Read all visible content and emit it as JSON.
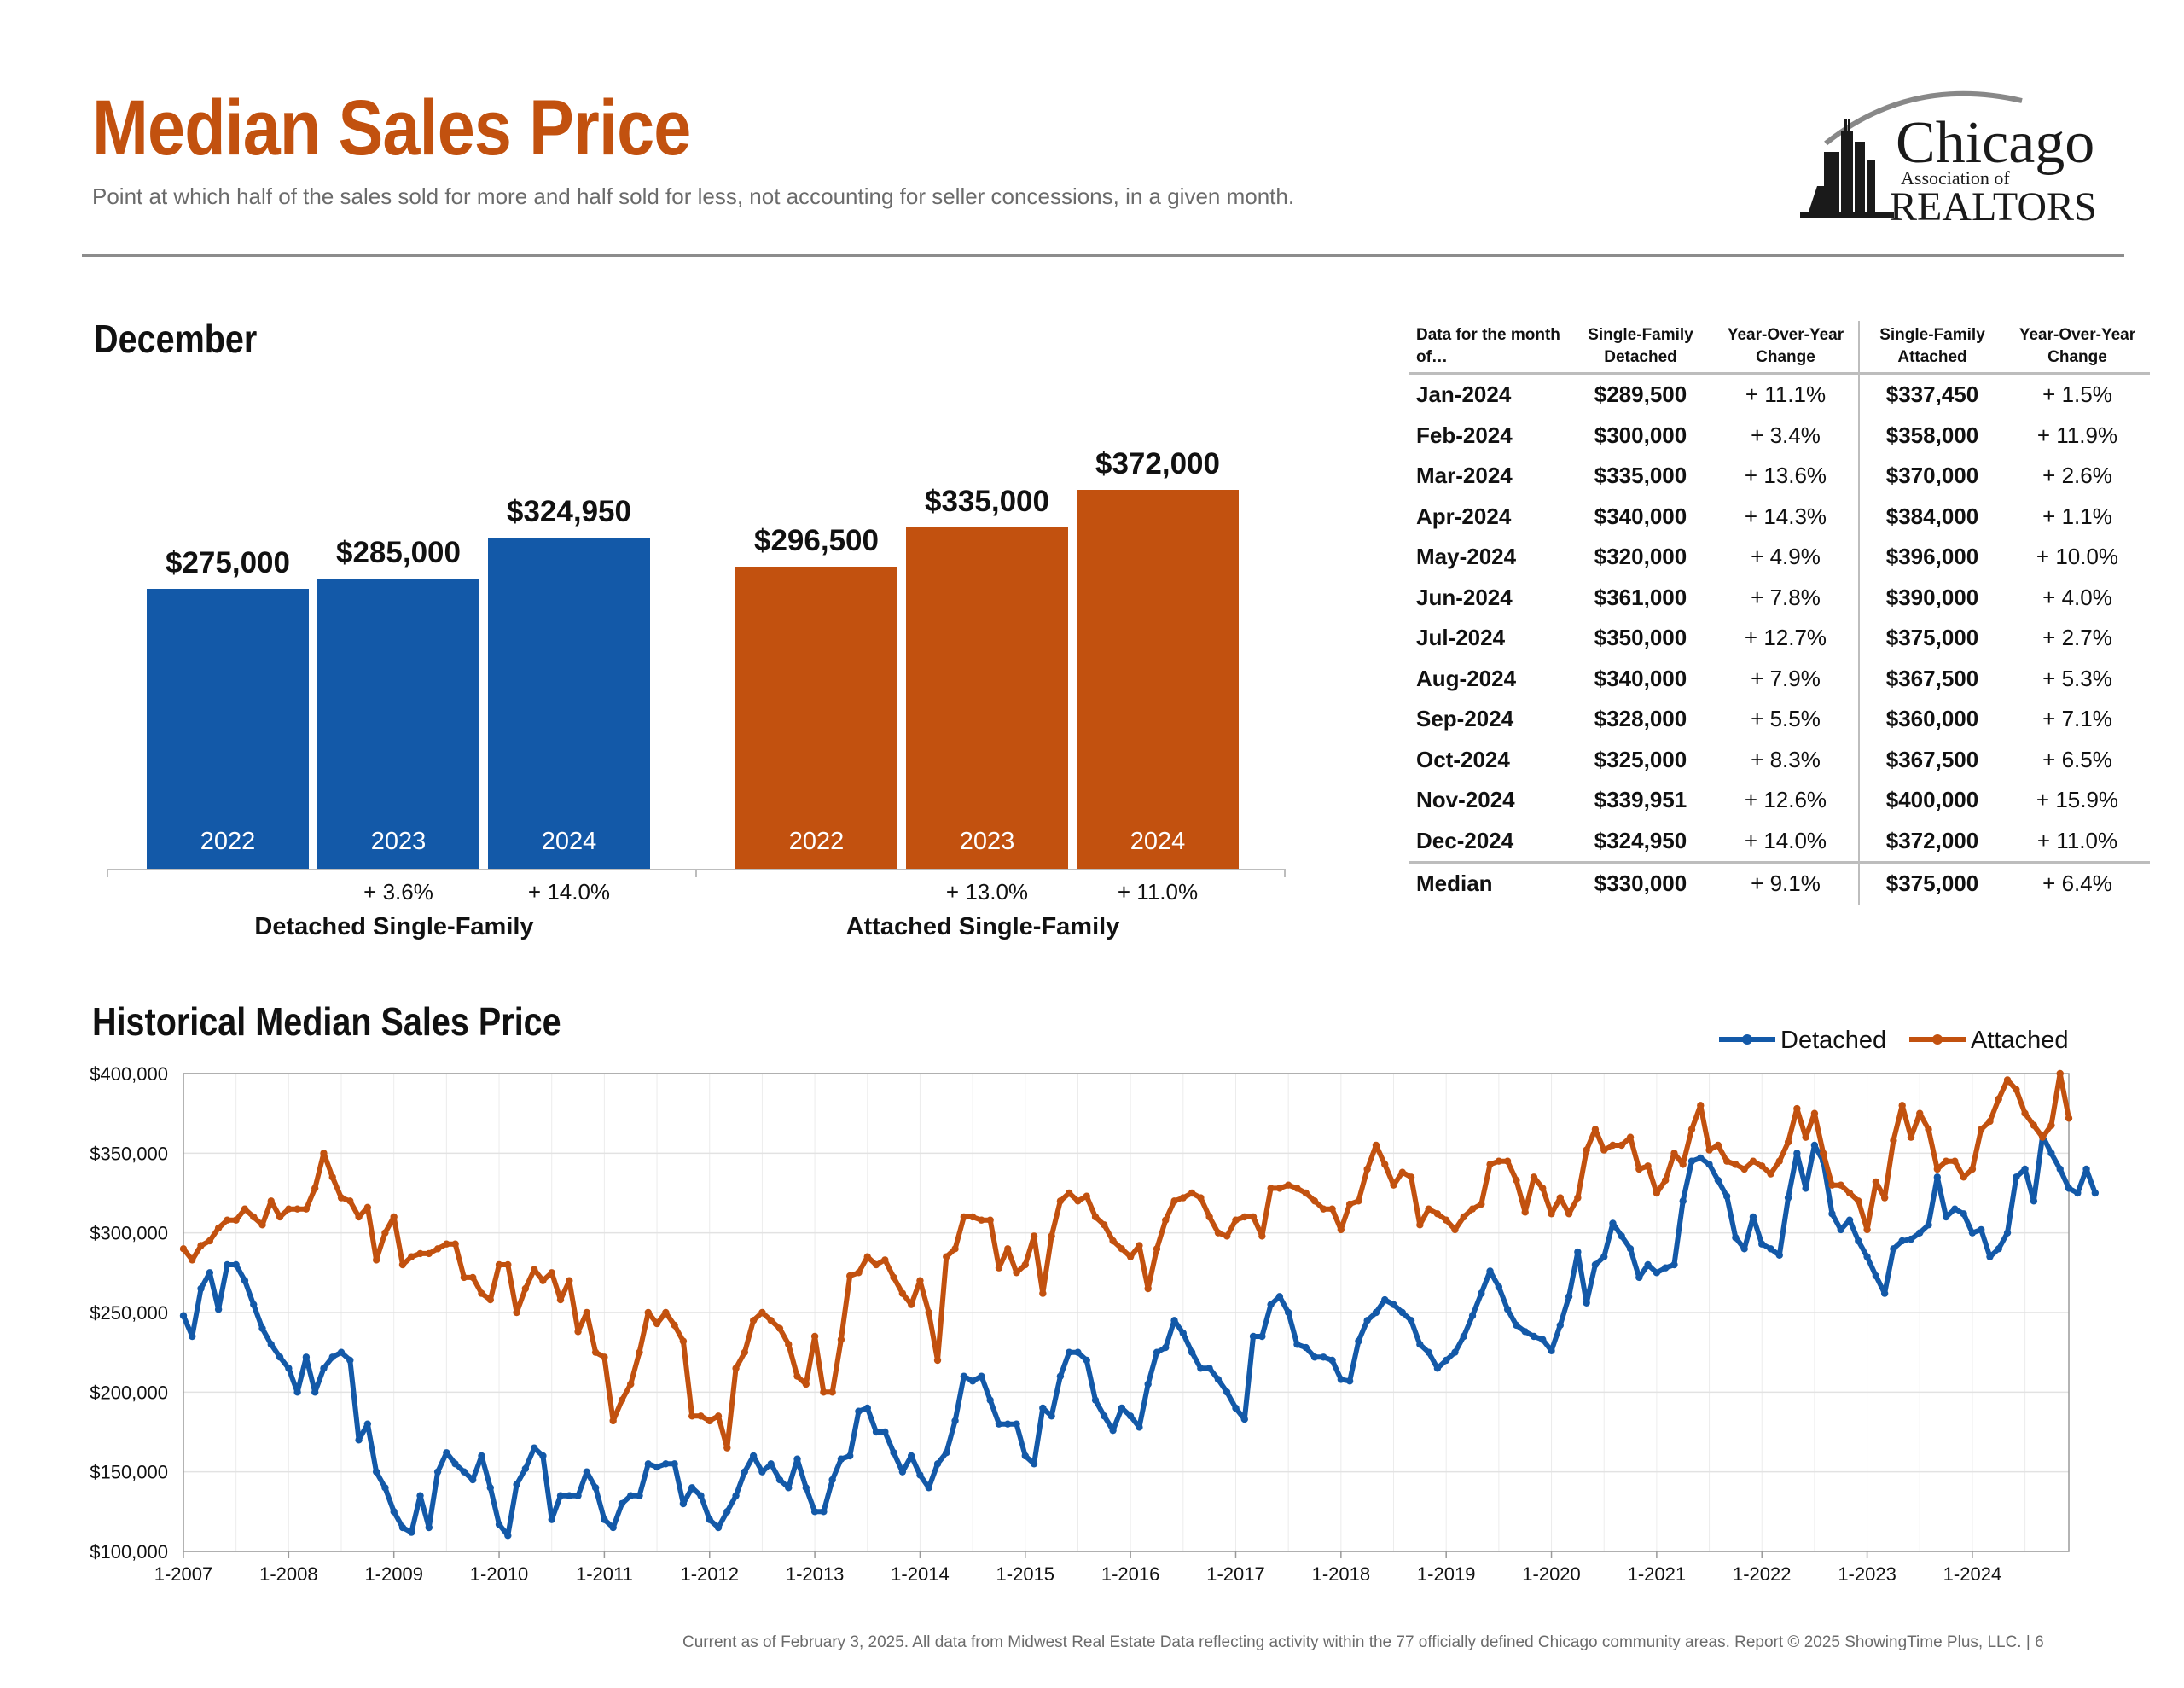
{
  "header": {
    "title": "Median Sales Price",
    "subtitle": "Point at which half of the sales sold for more and half sold for less, not accounting for seller concessions, in a given month."
  },
  "logo": {
    "line1": "Chicago",
    "line2": "Association of",
    "line3": "REALTORS"
  },
  "december": {
    "heading": "December",
    "groups": [
      {
        "label": "Detached Single-Family",
        "color": "#1359a8",
        "bars": [
          {
            "year": "2022",
            "value": 275000,
            "label": "$275,000",
            "change": ""
          },
          {
            "year": "2023",
            "value": 285000,
            "label": "$285,000",
            "change": "+ 3.6%"
          },
          {
            "year": "2024",
            "value": 324950,
            "label": "$324,950",
            "change": "+ 14.0%"
          }
        ]
      },
      {
        "label": "Attached Single-Family",
        "color": "#c2510f",
        "bars": [
          {
            "year": "2022",
            "value": 296500,
            "label": "$296,500",
            "change": ""
          },
          {
            "year": "2023",
            "value": 335000,
            "label": "$335,000",
            "change": "+ 13.0%"
          },
          {
            "year": "2024",
            "value": 372000,
            "label": "$372,000",
            "change": "+ 11.0%"
          }
        ]
      }
    ]
  },
  "table": {
    "headers": [
      "Data for the month of…",
      "Single-Family Detached",
      "Year-Over-Year Change",
      "Single-Family Attached",
      "Year-Over-Year Change"
    ],
    "rows": [
      [
        "Jan-2024",
        "$289,500",
        "+ 11.1%",
        "$337,450",
        "+ 1.5%"
      ],
      [
        "Feb-2024",
        "$300,000",
        "+ 3.4%",
        "$358,000",
        "+ 11.9%"
      ],
      [
        "Mar-2024",
        "$335,000",
        "+ 13.6%",
        "$370,000",
        "+ 2.6%"
      ],
      [
        "Apr-2024",
        "$340,000",
        "+ 14.3%",
        "$384,000",
        "+ 1.1%"
      ],
      [
        "May-2024",
        "$320,000",
        "+ 4.9%",
        "$396,000",
        "+ 10.0%"
      ],
      [
        "Jun-2024",
        "$361,000",
        "+ 7.8%",
        "$390,000",
        "+ 4.0%"
      ],
      [
        "Jul-2024",
        "$350,000",
        "+ 12.7%",
        "$375,000",
        "+ 2.7%"
      ],
      [
        "Aug-2024",
        "$340,000",
        "+ 7.9%",
        "$367,500",
        "+ 5.3%"
      ],
      [
        "Sep-2024",
        "$328,000",
        "+ 5.5%",
        "$360,000",
        "+ 7.1%"
      ],
      [
        "Oct-2024",
        "$325,000",
        "+ 8.3%",
        "$367,500",
        "+ 6.5%"
      ],
      [
        "Nov-2024",
        "$339,951",
        "+ 12.6%",
        "$400,000",
        "+ 15.9%"
      ],
      [
        "Dec-2024",
        "$324,950",
        "+ 14.0%",
        "$372,000",
        "+ 11.0%"
      ]
    ],
    "median": [
      "Median",
      "$330,000",
      "+ 9.1%",
      "$375,000",
      "+ 6.4%"
    ]
  },
  "historical": {
    "heading": "Historical Median Sales Price"
  },
  "chart_data": {
    "type": "line",
    "title": "Historical Median Sales Price",
    "ylim": [
      100000,
      400000
    ],
    "y_ticks": [
      "$100,000",
      "$150,000",
      "$200,000",
      "$250,000",
      "$300,000",
      "$350,000",
      "$400,000"
    ],
    "x_ticks": [
      "1-2007",
      "1-2008",
      "1-2009",
      "1-2010",
      "1-2011",
      "1-2012",
      "1-2013",
      "1-2014",
      "1-2015",
      "1-2016",
      "1-2017",
      "1-2018",
      "1-2019",
      "1-2020",
      "1-2021",
      "1-2022",
      "1-2023",
      "1-2024"
    ],
    "x_start": "1-2007",
    "x_end": "12-2024",
    "legend_position": "top-right",
    "grid": true,
    "series": [
      {
        "name": "Detached",
        "color": "#1359a8",
        "values": [
          248000,
          235000,
          265000,
          275000,
          252000,
          280000,
          280000,
          270000,
          255000,
          240000,
          230000,
          222000,
          215000,
          200000,
          222000,
          200000,
          215000,
          222000,
          225000,
          220000,
          170000,
          180000,
          150000,
          140000,
          125000,
          115000,
          112000,
          135000,
          115000,
          150000,
          162000,
          155000,
          150000,
          145000,
          160000,
          140000,
          117000,
          110000,
          142000,
          152000,
          165000,
          160000,
          120000,
          135000,
          135000,
          135000,
          150000,
          140000,
          120000,
          115000,
          130000,
          135000,
          135000,
          155000,
          153000,
          155000,
          155000,
          130000,
          140000,
          135000,
          120000,
          115000,
          125000,
          135000,
          150000,
          160000,
          150000,
          155000,
          145000,
          140000,
          158000,
          140000,
          125000,
          125000,
          145000,
          158000,
          160000,
          188000,
          190000,
          175000,
          175000,
          162000,
          150000,
          160000,
          148000,
          140000,
          155000,
          162000,
          182000,
          210000,
          207000,
          210000,
          195000,
          180000,
          180000,
          180000,
          160000,
          155000,
          190000,
          185000,
          210000,
          225000,
          225000,
          220000,
          195000,
          185000,
          176000,
          190000,
          185000,
          178000,
          205000,
          225000,
          228000,
          245000,
          237000,
          225000,
          215000,
          215000,
          208000,
          200000,
          190000,
          183000,
          235000,
          235000,
          255000,
          260000,
          250000,
          230000,
          228000,
          222000,
          222000,
          220000,
          208000,
          207000,
          232000,
          245000,
          250000,
          258000,
          255000,
          250000,
          245000,
          230000,
          225000,
          215000,
          220000,
          225000,
          235000,
          248000,
          262000,
          276000,
          266000,
          252000,
          242000,
          238000,
          235000,
          233000,
          226000,
          242000,
          260000,
          288000,
          256000,
          280000,
          285000,
          306000,
          298000,
          290000,
          272000,
          280000,
          275000,
          278000,
          280000,
          320000,
          345000,
          347000,
          343000,
          333000,
          323000,
          297000,
          290000,
          310000,
          293000,
          290000,
          286000,
          322000,
          350000,
          328000,
          355000,
          345000,
          312000,
          302000,
          308000,
          295000,
          285000,
          273000,
          262000,
          290000,
          295000,
          296000,
          300000,
          305000,
          335000,
          310000,
          315000,
          312000,
          300000,
          302000,
          285000,
          290000,
          300000,
          335000,
          340000,
          320000,
          361000,
          350000,
          340000,
          328000,
          325000,
          340000,
          325000
        ],
        "label_note": ""
      },
      {
        "name": "Attached",
        "color": "#c2510f",
        "values": [
          290000,
          283000,
          292000,
          295000,
          303000,
          308000,
          308000,
          315000,
          310000,
          305000,
          320000,
          310000,
          315000,
          315000,
          315000,
          328000,
          350000,
          335000,
          322000,
          320000,
          310000,
          316000,
          283000,
          300000,
          310000,
          280000,
          285000,
          287000,
          287000,
          290000,
          293000,
          293000,
          272000,
          272000,
          262000,
          258000,
          280000,
          280000,
          250000,
          265000,
          277000,
          270000,
          275000,
          258000,
          270000,
          238000,
          250000,
          225000,
          222000,
          182000,
          195000,
          205000,
          225000,
          250000,
          243000,
          250000,
          242000,
          232000,
          185000,
          185000,
          182000,
          185000,
          165000,
          215000,
          225000,
          245000,
          250000,
          245000,
          240000,
          230000,
          210000,
          205000,
          235000,
          200000,
          200000,
          233000,
          273000,
          275000,
          285000,
          280000,
          283000,
          272000,
          262000,
          255000,
          270000,
          250000,
          220000,
          285000,
          290000,
          310000,
          310000,
          308000,
          308000,
          278000,
          290000,
          275000,
          280000,
          298000,
          262000,
          298000,
          320000,
          325000,
          320000,
          323000,
          310000,
          305000,
          295000,
          290000,
          285000,
          292000,
          265000,
          290000,
          308000,
          320000,
          322000,
          325000,
          322000,
          310000,
          300000,
          298000,
          308000,
          310000,
          310000,
          298000,
          328000,
          328000,
          330000,
          328000,
          325000,
          320000,
          315000,
          315000,
          302000,
          318000,
          320000,
          340000,
          355000,
          343000,
          330000,
          338000,
          335000,
          305000,
          315000,
          312000,
          308000,
          302000,
          310000,
          315000,
          318000,
          343000,
          345000,
          345000,
          333000,
          313000,
          335000,
          328000,
          312000,
          322000,
          312000,
          322000,
          352000,
          365000,
          352000,
          355000,
          355000,
          360000,
          340000,
          342000,
          325000,
          333000,
          350000,
          343000,
          365000,
          380000,
          352000,
          355000,
          345000,
          343000,
          340000,
          345000,
          342000,
          337000,
          345000,
          357000,
          378000,
          360000,
          375000,
          350000,
          330000,
          330000,
          325000,
          320000,
          302000,
          332000,
          322000,
          358000,
          380000,
          360000,
          375000,
          365000,
          340000,
          345000,
          345000,
          335000,
          340000,
          365000,
          370000,
          384000,
          396000,
          390000,
          375000,
          367500,
          360000,
          367500,
          400000,
          372000
        ]
      }
    ]
  },
  "footer": {
    "text": "Current as of February 3, 2025.  All data from Midwest Real Estate Data reflecting activity within the 77 officially defined Chicago community areas. Report © 2025 ShowingTime Plus, LLC.  |  6"
  }
}
